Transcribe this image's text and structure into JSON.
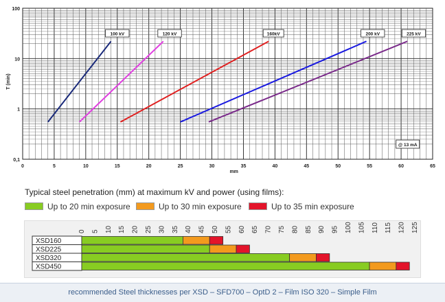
{
  "chart_data": [
    {
      "type": "line",
      "ylabel": "T (min)",
      "xlabel": "mm",
      "xlim": [
        0,
        65
      ],
      "ylim": [
        0.1,
        100
      ],
      "yscale": "log",
      "x_ticks": [
        "0",
        "5",
        "10",
        "15",
        "20",
        "25",
        "30",
        "35",
        "40",
        "45",
        "50",
        "55",
        "60",
        "65"
      ],
      "y_ticks": [
        "0,1",
        "1",
        "10",
        "100"
      ],
      "grid": true,
      "annotation": "@ 13 mA",
      "series": [
        {
          "name": "100 kV",
          "color": "#1a2a7a",
          "x": [
            4,
            14
          ],
          "y": [
            0.55,
            22
          ]
        },
        {
          "name": "120 kV",
          "color": "#e040e0",
          "x": [
            9,
            22.3
          ],
          "y": [
            0.55,
            22
          ]
        },
        {
          "name": "160kV",
          "color": "#e02020",
          "x": [
            15.5,
            39
          ],
          "y": [
            0.55,
            22
          ]
        },
        {
          "name": "200 kV",
          "color": "#1a1ae0",
          "x": [
            25,
            54.5
          ],
          "y": [
            0.55,
            22
          ]
        },
        {
          "name": "225 kV",
          "color": "#7a2a8a",
          "x": [
            29.5,
            61
          ],
          "y": [
            0.55,
            22
          ]
        }
      ]
    },
    {
      "type": "bar",
      "stacked": true,
      "orientation": "horizontal",
      "categories": [
        "XSD160",
        "XSD225",
        "XSD320",
        "XSD450"
      ],
      "x_ticks": [
        "0",
        "5",
        "10",
        "15",
        "20",
        "25",
        "30",
        "35",
        "40",
        "45",
        "50",
        "55",
        "60",
        "65",
        "70",
        "75",
        "80",
        "85",
        "90",
        "95",
        "100",
        "105",
        "110",
        "115",
        "120",
        "125"
      ],
      "xlim": [
        0,
        125
      ],
      "series": [
        {
          "name": "Up to 20 min exposure",
          "color": "#88cc22",
          "values": [
            38,
            48,
            78,
            108
          ]
        },
        {
          "name": "Up to 30 min exposure",
          "color": "#f39a1e",
          "values": [
            10,
            10,
            10,
            10
          ]
        },
        {
          "name": "Up to 35 min exposure",
          "color": "#e3142a",
          "values": [
            5,
            5,
            5,
            5
          ]
        }
      ]
    }
  ],
  "page": {
    "heading": "Typical steel penetration (mm) at maximum kV and power (using films):",
    "footer": "recommended Steel thicknesses per XSD – SFD700 – OptD 2 – Film ISO 320 – Simple Film"
  }
}
